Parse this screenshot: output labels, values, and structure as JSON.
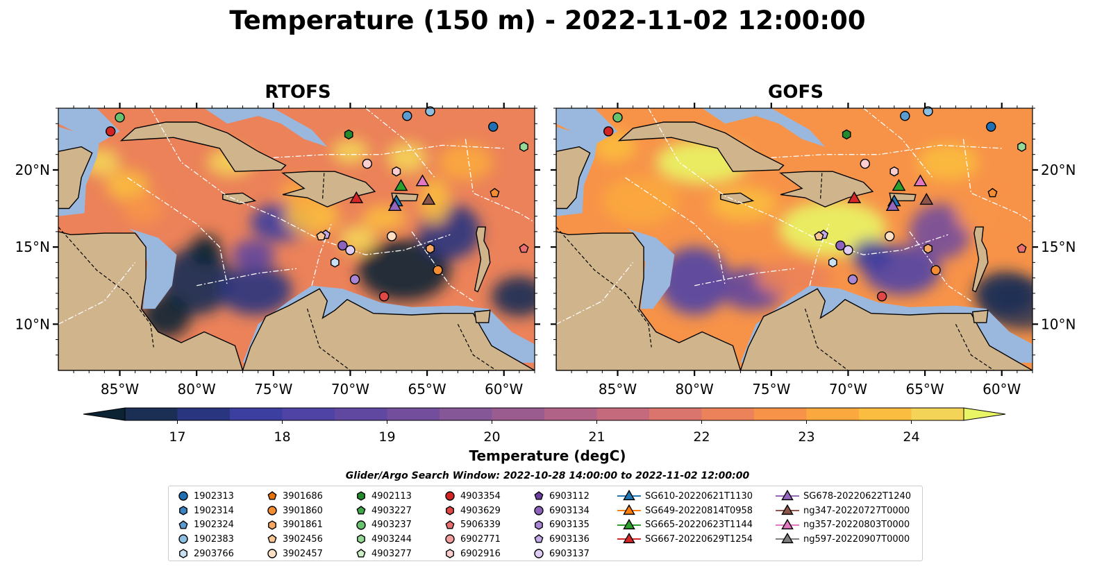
{
  "title": "Temperature (150 m) - 2022-11-02 12:00:00",
  "panels": [
    {
      "name": "RTOFS"
    },
    {
      "name": "GOFS"
    }
  ],
  "axes": {
    "lon_ticks": [
      "85°W",
      "80°W",
      "75°W",
      "70°W",
      "65°W",
      "60°W"
    ],
    "lat_ticks": [
      "20°N",
      "15°N",
      "10°N"
    ],
    "lon_range": [
      -89,
      -58
    ],
    "lat_range": [
      7,
      24
    ]
  },
  "colorbar": {
    "label": "Temperature (degC)",
    "min": 16.5,
    "max": 24.5,
    "ticks": [
      "17",
      "18",
      "19",
      "20",
      "21",
      "22",
      "23",
      "24"
    ],
    "extend": "both",
    "colors": [
      "#0b2333",
      "#1b2f55",
      "#2a3580",
      "#3c3ea0",
      "#5043a6",
      "#60479f",
      "#724e9c",
      "#855797",
      "#9a5c8f",
      "#b06386",
      "#c56a7c",
      "#d9756c",
      "#eb8259",
      "#f79349",
      "#fba83f",
      "#fbbd3f",
      "#f4d457",
      "#e9f565"
    ]
  },
  "search_window": "Glider/Argo Search Window: 2022-10-28 14:00:00 to 2022-11-02 12:00:00",
  "legend": {
    "columns": [
      [
        {
          "label": "1902313",
          "marker": "circle",
          "color": "#1f6fb4"
        },
        {
          "label": "1902314",
          "marker": "hexagon",
          "color": "#3a82c0"
        },
        {
          "label": "1902324",
          "marker": "pentagon",
          "color": "#5b9bd0"
        },
        {
          "label": "1902383",
          "marker": "circle",
          "color": "#8dbfe2"
        },
        {
          "label": "2903766",
          "marker": "hexagon",
          "color": "#c9e1f3"
        }
      ],
      [
        {
          "label": "3901686",
          "marker": "pentagon",
          "color": "#e8710a"
        },
        {
          "label": "3901860",
          "marker": "circle",
          "color": "#f38c33"
        },
        {
          "label": "3901861",
          "marker": "hexagon",
          "color": "#f7a664"
        },
        {
          "label": "3902456",
          "marker": "pentagon",
          "color": "#fac694"
        },
        {
          "label": "3902457",
          "marker": "circle",
          "color": "#fde0c3"
        }
      ],
      [
        {
          "label": "4902113",
          "marker": "hexagon",
          "color": "#238b2e"
        },
        {
          "label": "4903227",
          "marker": "pentagon",
          "color": "#3fa64a"
        },
        {
          "label": "4903237",
          "marker": "circle",
          "color": "#66c26f"
        },
        {
          "label": "4903244",
          "marker": "hexagon",
          "color": "#96d896"
        },
        {
          "label": "4903277",
          "marker": "pentagon",
          "color": "#cbeec4"
        }
      ],
      [
        {
          "label": "4903354",
          "marker": "circle",
          "color": "#d32323"
        },
        {
          "label": "4903629",
          "marker": "hexagon",
          "color": "#e04848"
        },
        {
          "label": "5906339",
          "marker": "pentagon",
          "color": "#ea6f6f"
        },
        {
          "label": "6902771",
          "marker": "circle",
          "color": "#f39e9e"
        },
        {
          "label": "6902916",
          "marker": "hexagon",
          "color": "#fbcfcf"
        }
      ],
      [
        {
          "label": "6903112",
          "marker": "pentagon",
          "color": "#6b3fa0"
        },
        {
          "label": "6903134",
          "marker": "circle",
          "color": "#8c62bd"
        },
        {
          "label": "6903135",
          "marker": "hexagon",
          "color": "#a886d4"
        },
        {
          "label": "6903136",
          "marker": "pentagon",
          "color": "#c4aae6"
        },
        {
          "label": "6903137",
          "marker": "circle",
          "color": "#dfcdf6"
        }
      ],
      [
        {
          "label": "SG610-20220621T1130",
          "marker": "triangle",
          "color": "#1f77b4"
        },
        {
          "label": "SG649-20220814T0958",
          "marker": "triangle",
          "color": "#ff7f0e"
        },
        {
          "label": "SG665-20220623T1144",
          "marker": "triangle",
          "color": "#2ca02c"
        },
        {
          "label": "SG667-20220629T1254",
          "marker": "triangle",
          "color": "#d62728"
        }
      ],
      [
        {
          "label": "SG678-20220622T1240",
          "marker": "triangle",
          "color": "#9467bd"
        },
        {
          "label": "ng347-20220727T0000",
          "marker": "triangle",
          "color": "#8c564b"
        },
        {
          "label": "ng357-20220803T0000",
          "marker": "triangle",
          "color": "#e377c2"
        },
        {
          "label": "ng597-20220907T0000",
          "marker": "triangle",
          "color": "#7f7f7f"
        }
      ]
    ]
  },
  "observations": [
    {
      "lon": -85,
      "lat": 23.4,
      "marker": "circle",
      "color": "#66c26f"
    },
    {
      "lon": -85.6,
      "lat": 22.5,
      "marker": "circle",
      "color": "#d32323"
    },
    {
      "lon": -60.7,
      "lat": 22.8,
      "marker": "circle",
      "color": "#1f6fb4"
    },
    {
      "lon": -66.3,
      "lat": 23.5,
      "marker": "circle",
      "color": "#5b9bd0"
    },
    {
      "lon": -64.8,
      "lat": 23.8,
      "marker": "circle",
      "color": "#8dbfe2"
    },
    {
      "lon": -58.7,
      "lat": 21.5,
      "marker": "hexagon",
      "color": "#96d896"
    },
    {
      "lon": -70.1,
      "lat": 22.3,
      "marker": "hexagon",
      "color": "#238b2e"
    },
    {
      "lon": -68.9,
      "lat": 20.4,
      "marker": "circle",
      "color": "#fbcfcf"
    },
    {
      "lon": -67,
      "lat": 19.9,
      "marker": "hexagon",
      "color": "#fbcfcf"
    },
    {
      "lon": -60.6,
      "lat": 18.5,
      "marker": "pentagon",
      "color": "#f38c33"
    },
    {
      "lon": -71.6,
      "lat": 15.8,
      "marker": "pentagon",
      "color": "#c4aae6"
    },
    {
      "lon": -71.9,
      "lat": 15.7,
      "marker": "pentagon",
      "color": "#fac694"
    },
    {
      "lon": -70.5,
      "lat": 15.1,
      "marker": "circle",
      "color": "#8c62bd"
    },
    {
      "lon": -70.0,
      "lat": 14.8,
      "marker": "circle",
      "color": "#dfcdf6"
    },
    {
      "lon": -71.0,
      "lat": 14.0,
      "marker": "hexagon",
      "color": "#c9e1f3"
    },
    {
      "lon": -69.7,
      "lat": 12.9,
      "marker": "circle",
      "color": "#a886d4"
    },
    {
      "lon": -67.3,
      "lat": 15.7,
      "marker": "circle",
      "color": "#fde0c3"
    },
    {
      "lon": -64.8,
      "lat": 14.9,
      "marker": "hexagon",
      "color": "#f7a664"
    },
    {
      "lon": -64.3,
      "lat": 13.5,
      "marker": "circle",
      "color": "#f38c33"
    },
    {
      "lon": -58.7,
      "lat": 14.9,
      "marker": "pentagon",
      "color": "#ea6f6f"
    },
    {
      "lon": -67.8,
      "lat": 11.8,
      "marker": "circle",
      "color": "#e04848"
    },
    {
      "lon": -66.7,
      "lat": 18.9,
      "marker": "triangle",
      "color": "#2ca02c"
    },
    {
      "lon": -65.3,
      "lat": 19.2,
      "marker": "triangle",
      "color": "#e377c2"
    },
    {
      "lon": -69.6,
      "lat": 18.1,
      "marker": "triangle",
      "color": "#d62728"
    },
    {
      "lon": -67.0,
      "lat": 17.9,
      "marker": "triangle",
      "color": "#1f77b4"
    },
    {
      "lon": -67.1,
      "lat": 17.6,
      "marker": "triangle",
      "color": "#9467bd"
    },
    {
      "lon": -64.9,
      "lat": 18.0,
      "marker": "triangle",
      "color": "#8c564b"
    }
  ]
}
